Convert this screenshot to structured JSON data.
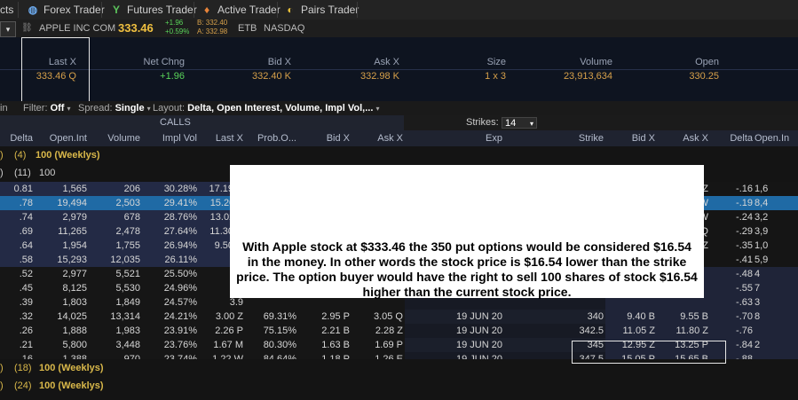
{
  "tabs": [
    {
      "label": "cts",
      "icon": ""
    },
    {
      "label": "Forex Trader",
      "icon": "globe-icon"
    },
    {
      "label": "Futures Trader",
      "icon": "futures-icon"
    },
    {
      "label": "Active Trader",
      "icon": "flame-icon"
    },
    {
      "label": "Pairs Trader",
      "icon": "pairs-icon"
    }
  ],
  "symbol": {
    "company": "APPLE INC COM",
    "last": "333.46",
    "change": "+1.96",
    "change_pct": "+0.59%",
    "bid": "B: 332.40",
    "ask": "A: 332.98",
    "tag1": "ETB",
    "exchange": "NASDAQ"
  },
  "quote": {
    "headers": [
      "Last X",
      "Net Chng",
      "Bid X",
      "Ask X",
      "Size",
      "Volume",
      "Open"
    ],
    "values": [
      "333.46 Q",
      "+1.96",
      "332.40 K",
      "332.98 K",
      "1 x 3",
      "23,913,634",
      "330.25"
    ]
  },
  "filter": {
    "left": "in",
    "filter_label": "Filter:",
    "filter_value": "Off",
    "spread_label": "Spread:",
    "spread_value": "Single",
    "layout_label": "Layout:",
    "layout_value": "Delta, Open Interest, Volume, Impl Vol,..."
  },
  "calls_label": "CALLS",
  "strikes_label": "Strikes:",
  "strikes_value": "14",
  "columns": [
    "Delta",
    "Open.Int",
    "Volume",
    "Impl Vol",
    "Last X",
    "Prob.O...",
    "Bid X",
    "Ask X",
    "Exp",
    "Strike",
    "Bid X",
    "Ask X",
    "Delta",
    "Open.In"
  ],
  "groups": [
    {
      "count": "(4)",
      "label": "100 (Weeklys)"
    },
    {
      "count": "(11)",
      "label": "100"
    },
    {
      "count": "(18)",
      "label": "100 (Weeklys)"
    },
    {
      "count": "(24)",
      "label": "100 (Weeklys)"
    }
  ],
  "rows": [
    [
      "0.81",
      "1,565",
      "206",
      "30.28%",
      "17.19 C",
      "20.21%",
      "17.05 M",
      "17.55 Z",
      "19 JUN 20",
      "317.5",
      "1.22 M",
      "1.72 Z",
      "-.16",
      "1,6"
    ],
    [
      ".78",
      "19,494",
      "2,503",
      "29.41%",
      "15.20 Z",
      "23.78%",
      "15.10 M",
      "15.30 Z",
      "19 JUN 20",
      "320",
      "1.65 C",
      "1.72 W",
      "-.19",
      "8,4"
    ],
    [
      ".74",
      "2,979",
      "678",
      "28.76%",
      "13.02 A",
      "28.05%",
      "13.10 E",
      "13.35 Z",
      "19 JUN 20",
      "322.5",
      "2.12 B",
      "2.19 W",
      "-.24",
      "3,2"
    ],
    [
      ".69",
      "11,265",
      "2,478",
      "27.64%",
      "11.30 H",
      "32.53%",
      "11.15 B",
      "11.35 P",
      "19 JUN 20",
      "325",
      "2.70 Q",
      "2.94 Q",
      "-.29",
      "3,9"
    ],
    [
      ".64",
      "1,954",
      "1,755",
      "26.94%",
      "9.50 C",
      "37.87%",
      "9.35 B",
      "9.60 Z",
      "19 JUN 20",
      "327.5",
      "3.35 B",
      "3.60 Z",
      "-.35",
      "1,0"
    ],
    [
      ".58",
      "15,293",
      "12,035",
      "26.11%",
      "7.8",
      "",
      "",
      "",
      "19 JUN 20",
      "330",
      "",
      "",
      "-.41",
      "5,9"
    ],
    [
      ".52",
      "2,977",
      "5,521",
      "25.50%",
      "6.3",
      "",
      "",
      "",
      "19 JUN 20",
      "",
      "",
      "",
      "-.48",
      "4"
    ],
    [
      ".45",
      "8,125",
      "5,530",
      "24.96%",
      "5.0",
      "",
      "",
      "",
      "",
      "",
      "",
      "",
      "-.55",
      "7"
    ],
    [
      ".39",
      "1,803",
      "1,849",
      "24.57%",
      "3.9",
      "",
      "",
      "",
      "",
      "",
      "",
      "",
      "-.63",
      "3"
    ],
    [
      ".32",
      "14,025",
      "13,314",
      "24.21%",
      "3.00 Z",
      "69.31%",
      "2.95 P",
      "3.05 Q",
      "19 JUN 20",
      "340",
      "9.40 B",
      "9.55 B",
      "-.70",
      "8"
    ],
    [
      ".26",
      "1,888",
      "1,983",
      "23.91%",
      "2.26 P",
      "75.15%",
      "2.21 B",
      "2.28 Z",
      "19 JUN 20",
      "342.5",
      "11.05 Z",
      "11.80 Z",
      "-.76",
      ""
    ],
    [
      ".21",
      "5,800",
      "3,448",
      "23.76%",
      "1.67 M",
      "80.30%",
      "1.63 B",
      "1.69 P",
      "19 JUN 20",
      "345",
      "12.95 Z",
      "13.25 P",
      "-.84",
      "2"
    ],
    [
      ".16",
      "1,388",
      "970",
      "23.74%",
      "1.22 W",
      "84.64%",
      "1.18 P",
      "1.26 E",
      "19 JUN 20",
      "347.5",
      "15.05 P",
      "15.65 B",
      "-.88",
      ""
    ],
    [
      ".12",
      "14,836",
      "5,722",
      "23.55%",
      ".90 Z",
      "88.42%",
      ".82 N",
      ".90 Z",
      "19 JUN 20",
      "350",
      "17.20 Q",
      "17.50 M",
      "-.95",
      "3"
    ]
  ],
  "callout_text": "With Apple stock at $333.46 the 350 put options would be considered $16.54 in the money. In other words the stock price is $16.54 lower than the strike price. The option buyer would have the right to sell 100 shares of stock $16.54 higher than the current stock price.",
  "colors": {
    "accent": "#f0c040",
    "itm_bg": "#1e2540",
    "selected_bg": "#1f6aa5",
    "otm_bg": "#141414"
  }
}
